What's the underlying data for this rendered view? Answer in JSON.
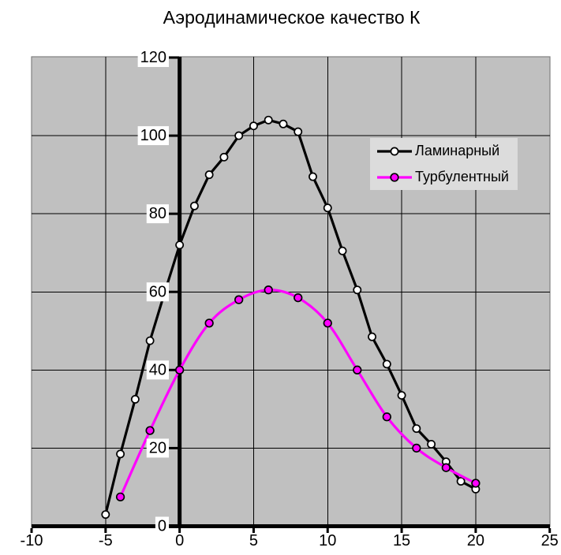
{
  "chart_data": {
    "type": "line",
    "title": "Аэродинамическое качество К",
    "xlabel": "",
    "ylabel": "",
    "xlim": [
      -10,
      25
    ],
    "ylim": [
      0,
      120
    ],
    "x_ticks": [
      -10,
      -5,
      0,
      5,
      10,
      15,
      20,
      25
    ],
    "y_ticks": [
      0,
      20,
      40,
      60,
      80,
      100,
      120
    ],
    "grid": true,
    "legend_position": "inside-upper-right",
    "series": [
      {
        "name": "Ламинарный",
        "color": "#000000",
        "marker": "circle",
        "marker_fill": "#ffffff",
        "marker_edge": "#000000",
        "smooth": false,
        "x": [
          -5,
          -4,
          -3,
          -2,
          -1,
          0,
          1,
          2,
          3,
          4,
          5,
          6,
          7,
          8,
          9,
          10,
          11,
          12,
          13,
          14,
          15,
          16,
          17,
          18,
          19,
          20
        ],
        "y": [
          3,
          18.5,
          32.5,
          47.5,
          60,
          72,
          82,
          90,
          94.5,
          100,
          102.5,
          104,
          103,
          101,
          89.5,
          81.5,
          70.5,
          60.5,
          48.5,
          41.5,
          33.5,
          25,
          21,
          16.5,
          11.5,
          9.5
        ]
      },
      {
        "name": "Турбулентный",
        "color": "#ff00ff",
        "marker": "circle",
        "marker_fill": "#ff00ff",
        "marker_edge": "#000000",
        "smooth": true,
        "x": [
          -4,
          -2,
          0,
          2,
          4,
          6,
          8,
          10,
          12,
          14,
          16,
          18,
          20
        ],
        "y": [
          7.5,
          24.5,
          40,
          52,
          58,
          60.5,
          58.5,
          52,
          40,
          28,
          20,
          15,
          11
        ]
      }
    ]
  },
  "colors": {
    "page_bg": "#ffffff",
    "plot_bg": "#c0c0c0",
    "plot_border": "#808080",
    "gridline": "#000000",
    "axis": "#000000",
    "legend_bg": "#dcdcdc",
    "text": "#000000"
  }
}
